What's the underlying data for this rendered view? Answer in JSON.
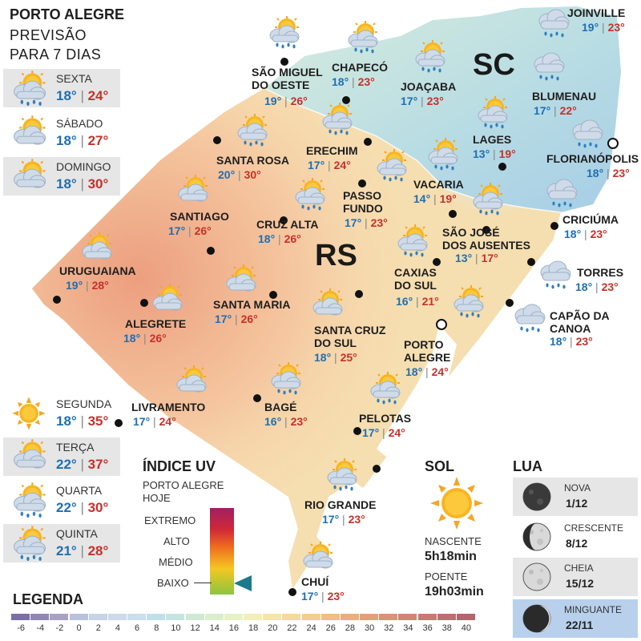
{
  "header": {
    "city": "PORTO ALEGRE",
    "line2": "PREVISÃO",
    "line3": "PARA 7 DIAS"
  },
  "forecast_days": [
    {
      "day": "SEXTA",
      "min": "18°",
      "max": "24°",
      "icon": "sun-cloud-rain-icon"
    },
    {
      "day": "SÁBADO",
      "min": "18°",
      "max": "27°",
      "icon": "sun-cloud-icon"
    },
    {
      "day": "DOMINGO",
      "min": "18°",
      "max": "30°",
      "icon": "sun-cloud-icon"
    },
    {
      "day": "SEGUNDA",
      "min": "18°",
      "max": "35°",
      "icon": "sun-icon"
    },
    {
      "day": "TERÇA",
      "min": "22°",
      "max": "37°",
      "icon": "sun-cloud-icon"
    },
    {
      "day": "QUARTA",
      "min": "22°",
      "max": "30°",
      "icon": "sun-cloud-rain-icon"
    },
    {
      "day": "QUINTA",
      "min": "21°",
      "max": "28°",
      "icon": "sun-cloud-rain-icon"
    }
  ],
  "regions": {
    "rs": "RS",
    "sc": "SC"
  },
  "cities": [
    {
      "name": "JOINVILLE",
      "min": "19°",
      "max": "23°",
      "icon": "rain-cloud-icon"
    },
    {
      "name": "BLUMENAU",
      "min": "17°",
      "max": "22°",
      "icon": "rain-cloud-icon"
    },
    {
      "name": "FLORIANÓPOLIS",
      "min": "18°",
      "max": "23°",
      "icon": "rain-cloud-icon"
    },
    {
      "name": "CRICIÚMA",
      "min": "18°",
      "max": "23°",
      "icon": "rain-cloud-icon"
    },
    {
      "name": "TORRES",
      "min": "18°",
      "max": "23°",
      "icon": "rain-cloud-icon"
    },
    {
      "name": "CAPÃO DA CANOA",
      "min": "18°",
      "max": "23°",
      "icon": "rain-cloud-icon"
    },
    {
      "name": "SÃO MIGUEL DO OESTE",
      "min": "19°",
      "max": "26°",
      "icon": "sun-cloud-rain-icon"
    },
    {
      "name": "CHAPECÓ",
      "min": "18°",
      "max": "23°",
      "icon": "sun-cloud-rain-icon"
    },
    {
      "name": "JOAÇABA",
      "min": "17°",
      "max": "23°",
      "icon": "sun-cloud-rain-icon"
    },
    {
      "name": "LAGES",
      "min": "13°",
      "max": "19°",
      "icon": "sun-cloud-rain-icon"
    },
    {
      "name": "ERECHIM",
      "min": "17°",
      "max": "24°",
      "icon": "sun-cloud-rain-icon"
    },
    {
      "name": "VACARIA",
      "min": "14°",
      "max": "19°",
      "icon": "sun-cloud-rain-icon"
    },
    {
      "name": "SANTA ROSA",
      "min": "20°",
      "max": "30°",
      "icon": "sun-cloud-rain-icon"
    },
    {
      "name": "PASSO FUNDO",
      "min": "17°",
      "max": "23°",
      "icon": "sun-cloud-rain-icon"
    },
    {
      "name": "SÃO JOSÉ DOS AUSENTES",
      "min": "13°",
      "max": "17°",
      "icon": "sun-cloud-rain-icon"
    },
    {
      "name": "SANTIAGO",
      "min": "17°",
      "max": "26°",
      "icon": "sun-cloud-icon"
    },
    {
      "name": "CRUZ ALTA",
      "min": "18°",
      "max": "26°",
      "icon": "sun-cloud-rain-icon"
    },
    {
      "name": "CAXIAS DO SUL",
      "min": "16°",
      "max": "21°",
      "icon": "sun-cloud-rain-icon"
    },
    {
      "name": "URUGUAIANA",
      "min": "19°",
      "max": "28°",
      "icon": "sun-cloud-icon"
    },
    {
      "name": "ALEGRETE",
      "min": "18°",
      "max": "26°",
      "icon": "sun-cloud-icon"
    },
    {
      "name": "SANTA MARIA",
      "min": "17°",
      "max": "26°",
      "icon": "sun-cloud-icon"
    },
    {
      "name": "SANTA CRUZ DO SUL",
      "min": "18°",
      "max": "25°",
      "icon": "sun-cloud-icon"
    },
    {
      "name": "PORTO ALEGRE",
      "min": "18°",
      "max": "24°",
      "icon": "sun-cloud-rain-icon"
    },
    {
      "name": "LIVRAMENTO",
      "min": "17°",
      "max": "24°",
      "icon": "sun-cloud-icon"
    },
    {
      "name": "BAGÉ",
      "min": "16°",
      "max": "23°",
      "icon": "sun-cloud-rain-icon"
    },
    {
      "name": "PELOTAS",
      "min": "17°",
      "max": "24°",
      "icon": "sun-cloud-rain-icon"
    },
    {
      "name": "RIO GRANDE",
      "min": "17°",
      "max": "23°",
      "icon": "sun-cloud-rain-icon"
    },
    {
      "name": "CHUÍ",
      "min": "17°",
      "max": "23°",
      "icon": "sun-cloud-icon"
    }
  ],
  "uv": {
    "title": "ÍNDICE UV",
    "subtitle1": "PORTO ALEGRE",
    "subtitle2": "HOJE",
    "levels": [
      "EXTREMO",
      "ALTO",
      "MÉDIO",
      "BAIXO"
    ],
    "current": "BAIXO"
  },
  "sun": {
    "title": "SOL",
    "rise_label": "NASCENTE",
    "rise": "5h18min",
    "set_label": "POENTE",
    "set": "19h03min"
  },
  "moon": {
    "title": "LUA",
    "phases": [
      {
        "name": "NOVA",
        "date": "1/12",
        "icon": "new-moon-icon"
      },
      {
        "name": "CRESCENTE",
        "date": "8/12",
        "icon": "crescent-moon-icon"
      },
      {
        "name": "CHEIA",
        "date": "15/12",
        "icon": "full-moon-icon"
      },
      {
        "name": "MINGUANTE",
        "date": "22/11",
        "icon": "waning-moon-icon"
      }
    ]
  },
  "legend": {
    "title": "LEGENDA",
    "values": [
      "-6",
      "-4",
      "-2",
      "0",
      "2",
      "4",
      "6",
      "8",
      "10",
      "12",
      "14",
      "16",
      "18",
      "20",
      "22",
      "24",
      "26",
      "28",
      "30",
      "32",
      "34",
      "36",
      "38",
      "40"
    ],
    "colors": [
      "#7b6fa6",
      "#9286b6",
      "#a9a2c6",
      "#b9c1dd",
      "#c6d3e8",
      "#cdd9ec",
      "#c9deee",
      "#bfe0ea",
      "#c3e5df",
      "#cfe9d4",
      "#dbeecb",
      "#e7f1c3",
      "#f2efb8",
      "#f7e5a8",
      "#f7d99a",
      "#f5cc90",
      "#f1be86",
      "#eaaf7e",
      "#e2a179",
      "#d99376",
      "#cf8674",
      "#c67a72",
      "#bd6f70",
      "#b4656e"
    ]
  }
}
